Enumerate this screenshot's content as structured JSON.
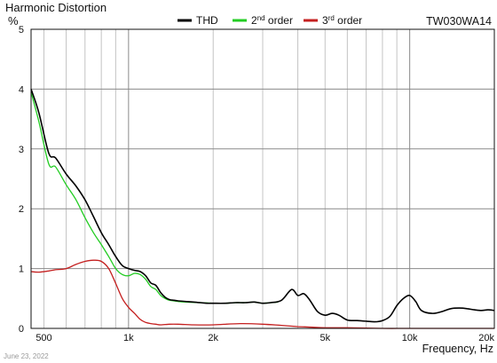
{
  "chart_data": {
    "type": "line",
    "title": "Harmonic Distortion",
    "ylabel": "%",
    "xlabel": "Frequency, Hz",
    "model_label": "TW030WA14",
    "x_scale": "log",
    "xlim": [
      450,
      20000
    ],
    "ylim": [
      0,
      5
    ],
    "grid": true,
    "legend_position": "top-center",
    "y_ticks": [
      {
        "value": 0,
        "label": "0"
      },
      {
        "value": 1,
        "label": "1"
      },
      {
        "value": 2,
        "label": "2"
      },
      {
        "value": 3,
        "label": "3"
      },
      {
        "value": 4,
        "label": "4"
      },
      {
        "value": 5,
        "label": "5"
      }
    ],
    "x_ticks": [
      {
        "value": 500,
        "label": "500"
      },
      {
        "value": 1000,
        "label": "1k"
      },
      {
        "value": 2000,
        "label": "2k"
      },
      {
        "value": 5000,
        "label": "5k"
      },
      {
        "value": 10000,
        "label": "10k"
      },
      {
        "value": 20000,
        "label": "20k"
      }
    ],
    "legend": [
      {
        "key": "thd",
        "base": "THD",
        "sup": "",
        "suffix": ""
      },
      {
        "key": "second",
        "base": "2",
        "sup": "nd",
        "suffix": " order"
      },
      {
        "key": "third",
        "base": "3",
        "sup": "rd",
        "suffix": " order"
      }
    ],
    "series": [
      {
        "key": "thd",
        "name": "THD",
        "color": "#000000",
        "x": [
          450,
          480,
          520,
          550,
          600,
          650,
          700,
          750,
          800,
          850,
          900,
          950,
          1000,
          1050,
          1100,
          1150,
          1200,
          1250,
          1300,
          1350,
          1400,
          1450,
          1500,
          1600,
          1700,
          1800,
          1900,
          2000,
          2200,
          2400,
          2600,
          2800,
          3000,
          3200,
          3500,
          3800,
          4000,
          4200,
          4400,
          4700,
          5000,
          5300,
          5600,
          6000,
          6500,
          7000,
          7500,
          8000,
          8500,
          9000,
          9500,
          10000,
          10500,
          11000,
          12000,
          13000,
          14000,
          15000,
          16000,
          17000,
          18000,
          19000,
          20000
        ],
        "y": [
          4.0,
          3.6,
          2.93,
          2.85,
          2.58,
          2.38,
          2.15,
          1.87,
          1.6,
          1.4,
          1.2,
          1.05,
          1.0,
          0.97,
          0.95,
          0.88,
          0.76,
          0.72,
          0.6,
          0.52,
          0.48,
          0.47,
          0.46,
          0.45,
          0.44,
          0.43,
          0.42,
          0.42,
          0.42,
          0.43,
          0.43,
          0.44,
          0.42,
          0.43,
          0.47,
          0.65,
          0.55,
          0.58,
          0.48,
          0.28,
          0.22,
          0.25,
          0.22,
          0.14,
          0.13,
          0.12,
          0.11,
          0.13,
          0.2,
          0.38,
          0.5,
          0.55,
          0.45,
          0.3,
          0.25,
          0.28,
          0.33,
          0.34,
          0.33,
          0.31,
          0.3,
          0.31,
          0.3
        ]
      },
      {
        "key": "second",
        "name": "2nd order",
        "color": "#22cc22",
        "x": [
          450,
          480,
          520,
          550,
          600,
          650,
          700,
          750,
          800,
          850,
          900,
          950,
          1000,
          1050,
          1100,
          1150,
          1200,
          1250,
          1300,
          1350,
          1400,
          1500,
          1600,
          1800,
          2000,
          2200,
          2400,
          2600,
          2800,
          3000,
          3200,
          3400
        ],
        "y": [
          3.95,
          3.45,
          2.75,
          2.7,
          2.4,
          2.15,
          1.85,
          1.6,
          1.4,
          1.2,
          1.0,
          0.9,
          0.88,
          0.92,
          0.9,
          0.82,
          0.7,
          0.65,
          0.55,
          0.5,
          0.47,
          0.45,
          0.44,
          0.43,
          0.42,
          0.42,
          0.43,
          0.43,
          0.44,
          0.42,
          0.43,
          0.44
        ]
      },
      {
        "key": "third",
        "name": "3rd order",
        "color": "#c41f1f",
        "x": [
          450,
          480,
          520,
          550,
          600,
          650,
          700,
          750,
          800,
          850,
          900,
          950,
          1000,
          1050,
          1100,
          1150,
          1200,
          1250,
          1300,
          1400,
          1500,
          1700,
          2000,
          2500,
          3000,
          3500,
          4000,
          4500,
          5000,
          6000,
          8000,
          10000,
          15000,
          20000
        ],
        "y": [
          0.95,
          0.94,
          0.96,
          0.98,
          1.0,
          1.07,
          1.12,
          1.14,
          1.12,
          1.0,
          0.75,
          0.5,
          0.35,
          0.25,
          0.15,
          0.1,
          0.08,
          0.07,
          0.06,
          0.07,
          0.07,
          0.06,
          0.06,
          0.08,
          0.07,
          0.05,
          0.03,
          0.02,
          0.01,
          0.01,
          0.0,
          0.0,
          0.0,
          0.0
        ]
      }
    ]
  },
  "footer": {
    "date": "June 23, 2022"
  }
}
